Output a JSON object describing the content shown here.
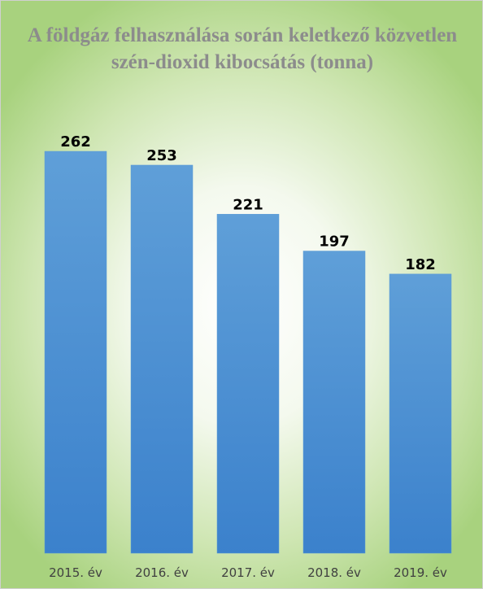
{
  "chart_data": {
    "type": "bar",
    "title": "A földgáz felhasználása során keletkező közvetlen szén-dioxid kibocsátás (tonna)",
    "categories": [
      "2015. év",
      "2016. év",
      "2017. év",
      "2018. év",
      "2019. év"
    ],
    "values": [
      262,
      253,
      221,
      197,
      182
    ],
    "color": "#5b9bd5"
  }
}
